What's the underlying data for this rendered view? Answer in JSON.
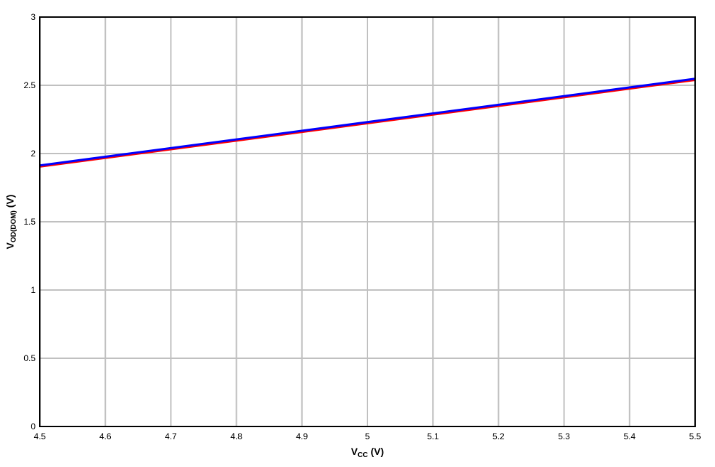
{
  "chart_data": {
    "type": "line",
    "title": "",
    "xlabel": "V",
    "xlabel_sub": "CC",
    "xlabel_unit": " (V)",
    "ylabel": "V",
    "ylabel_sub": "OD(DOM)",
    "ylabel_unit": " (V)",
    "xlim": [
      4.5,
      5.5
    ],
    "ylim": [
      0,
      3
    ],
    "grid": true,
    "x_ticks": [
      "4.5",
      "4.6",
      "4.7",
      "4.8",
      "4.9",
      "5",
      "5.1",
      "5.2",
      "5.3",
      "5.4",
      "5.5"
    ],
    "y_ticks": [
      "0",
      "0.5",
      "1",
      "1.5",
      "2",
      "2.5",
      "3"
    ],
    "series": [
      {
        "color": "#ff0000",
        "x": [
          4.5,
          5.5
        ],
        "y": [
          1.904,
          2.539
        ]
      },
      {
        "color": "#0000ff",
        "x": [
          4.5,
          5.5
        ],
        "y": [
          1.913,
          2.548
        ]
      }
    ]
  }
}
